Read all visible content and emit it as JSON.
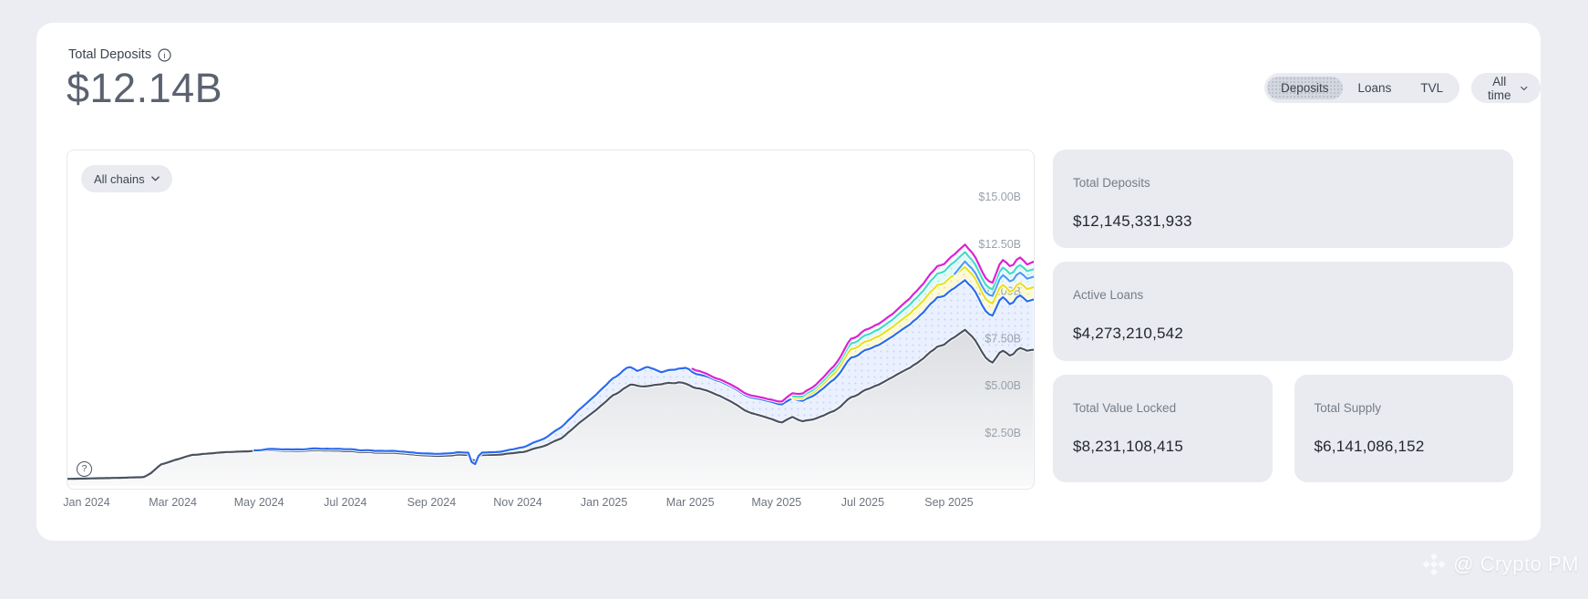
{
  "page": {
    "background_color": "#ecedf2",
    "card_color": "#ffffff"
  },
  "header": {
    "title": "Total Deposits",
    "value": "$12.14B"
  },
  "controls": {
    "metric_tabs": [
      {
        "label": "Deposits",
        "selected": true
      },
      {
        "label": "Loans",
        "selected": false
      },
      {
        "label": "TVL",
        "selected": false
      }
    ],
    "time_range": {
      "label": "All time"
    }
  },
  "chart": {
    "chain_filter": {
      "label": "All chains"
    },
    "help_label": "?",
    "x_ticks": [
      "Jan 2024",
      "Mar 2024",
      "May 2024",
      "Jul 2024",
      "Sep 2024",
      "Nov 2024",
      "Jan 2025",
      "Mar 2025",
      "May 2025",
      "Jul 2025",
      "Sep 2025"
    ],
    "y_ticks": [
      {
        "value": 15,
        "label": "$15.00B"
      },
      {
        "value": 12.5,
        "label": "$12.50B"
      },
      {
        "value": 10,
        "label": "$10.00B"
      },
      {
        "value": 7.5,
        "label": "$7.50B"
      },
      {
        "value": 5,
        "label": "$5.00B"
      },
      {
        "value": 2.5,
        "label": "$2.50B"
      }
    ],
    "chart_data": {
      "type": "area",
      "title": "Total Deposits over time by chain (no legend shown)",
      "x_unit": "months_since_2024-01",
      "x_range": [
        -0.45,
        21.96
      ],
      "y_unit": "USD billions",
      "ylim": [
        0,
        15
      ],
      "grid": false,
      "legend": false,
      "series": [
        {
          "id": "gray",
          "color": "#4a5260",
          "points": [
            [
              -0.45,
              0.04
            ],
            [
              0,
              0.05
            ],
            [
              0.7,
              0.09
            ],
            [
              1.3,
              0.13
            ],
            [
              1.45,
              0.3
            ],
            [
              1.7,
              0.8
            ],
            [
              2,
              1.02
            ],
            [
              2.4,
              1.3
            ],
            [
              3,
              1.42
            ],
            [
              3.6,
              1.5
            ],
            [
              4.2,
              1.55
            ],
            [
              4.8,
              1.5
            ],
            [
              5.4,
              1.56
            ],
            [
              6,
              1.5
            ],
            [
              6.6,
              1.44
            ],
            [
              7.2,
              1.4
            ],
            [
              7.7,
              1.3
            ],
            [
              8.2,
              1.25
            ],
            [
              8.6,
              1.33
            ],
            [
              8.85,
              1.3
            ],
            [
              8.95,
              0.9
            ],
            [
              9.1,
              1.3
            ],
            [
              9.6,
              1.33
            ],
            [
              10.1,
              1.45
            ],
            [
              10.6,
              1.8
            ],
            [
              11,
              2.2
            ],
            [
              11.4,
              3
            ],
            [
              11.9,
              3.9
            ],
            [
              12.2,
              4.5
            ],
            [
              12.6,
              5.05
            ],
            [
              13,
              4.95
            ],
            [
              13.4,
              5.1
            ],
            [
              13.75,
              5.15
            ],
            [
              14.1,
              4.9
            ],
            [
              14.5,
              4.6
            ],
            [
              14.9,
              4.15
            ],
            [
              15.2,
              3.7
            ],
            [
              15.5,
              3.45
            ],
            [
              15.8,
              3.25
            ],
            [
              16.1,
              3
            ],
            [
              16.35,
              3.3
            ],
            [
              16.6,
              3.1
            ],
            [
              16.9,
              3.25
            ],
            [
              17.3,
              3.6
            ],
            [
              17.7,
              4.35
            ],
            [
              18.2,
              4.9
            ],
            [
              18.7,
              5.45
            ],
            [
              19.2,
              6.1
            ],
            [
              19.7,
              7
            ],
            [
              20,
              7.4
            ],
            [
              20.35,
              8
            ],
            [
              20.55,
              7.55
            ],
            [
              20.8,
              6.5
            ],
            [
              21,
              6.2
            ],
            [
              21.2,
              6.85
            ],
            [
              21.4,
              6.5
            ],
            [
              21.6,
              6.95
            ],
            [
              21.8,
              6.8
            ],
            [
              21.96,
              6.85
            ]
          ]
        },
        {
          "id": "blue",
          "color": "#2a6cf0",
          "points": [
            [
              3.8,
              1.52
            ],
            [
              4.2,
              1.62
            ],
            [
              4.8,
              1.58
            ],
            [
              5.4,
              1.65
            ],
            [
              6,
              1.6
            ],
            [
              6.6,
              1.53
            ],
            [
              7.2,
              1.5
            ],
            [
              7.7,
              1.4
            ],
            [
              8.2,
              1.36
            ],
            [
              8.6,
              1.45
            ],
            [
              8.85,
              1.42
            ],
            [
              8.95,
              0.6
            ],
            [
              9.1,
              1.42
            ],
            [
              9.6,
              1.48
            ],
            [
              10.1,
              1.7
            ],
            [
              10.6,
              2.2
            ],
            [
              11,
              2.8
            ],
            [
              11.4,
              3.7
            ],
            [
              11.9,
              4.75
            ],
            [
              12.2,
              5.4
            ],
            [
              12.55,
              6
            ],
            [
              12.75,
              5.8
            ],
            [
              12.95,
              6
            ],
            [
              13.3,
              5.7
            ],
            [
              13.6,
              5.85
            ],
            [
              13.9,
              5.9
            ],
            [
              14.15,
              5.6
            ],
            [
              14.5,
              5.35
            ],
            [
              14.9,
              4.95
            ],
            [
              15.2,
              4.5
            ],
            [
              15.5,
              4.3
            ],
            [
              15.8,
              4.15
            ],
            [
              16.1,
              3.95
            ],
            [
              16.35,
              4.28
            ],
            [
              16.6,
              4.2
            ],
            [
              16.9,
              4.55
            ],
            [
              17.3,
              5.25
            ],
            [
              17.7,
              6.45
            ],
            [
              18.2,
              7
            ],
            [
              18.7,
              7.6
            ],
            [
              19.2,
              8.45
            ],
            [
              19.7,
              9.6
            ],
            [
              20,
              10
            ],
            [
              20.35,
              10.65
            ],
            [
              20.55,
              10.15
            ],
            [
              20.8,
              8.95
            ],
            [
              21,
              8.7
            ],
            [
              21.2,
              9.7
            ],
            [
              21.4,
              9.2
            ],
            [
              21.6,
              9.75
            ],
            [
              21.8,
              9.4
            ],
            [
              21.96,
              9.5
            ]
          ]
        },
        {
          "id": "yellow",
          "color": "#e9e027",
          "points": [
            [
              16.3,
              4.3
            ],
            [
              16.6,
              4.35
            ],
            [
              16.9,
              4.75
            ],
            [
              17.3,
              5.55
            ],
            [
              17.7,
              6.9
            ],
            [
              18.2,
              7.45
            ],
            [
              18.7,
              8.1
            ],
            [
              19.2,
              9.05
            ],
            [
              19.7,
              10.25
            ],
            [
              20,
              10.7
            ],
            [
              20.35,
              11.35
            ],
            [
              20.55,
              10.85
            ],
            [
              20.8,
              9.6
            ],
            [
              21,
              9.35
            ],
            [
              21.2,
              10.35
            ],
            [
              21.4,
              9.85
            ],
            [
              21.6,
              10.4
            ],
            [
              21.8,
              10.05
            ],
            [
              21.96,
              10.15
            ]
          ]
        },
        {
          "id": "lightblue",
          "color": "#4e9cf5",
          "points": [
            [
              20.05,
              10.78
            ],
            [
              20.35,
              11.65
            ],
            [
              20.55,
              11.15
            ],
            [
              20.8,
              9.95
            ],
            [
              21,
              9.75
            ],
            [
              21.2,
              10.85
            ],
            [
              21.4,
              10.4
            ],
            [
              21.6,
              10.95
            ],
            [
              21.8,
              10.6
            ],
            [
              21.96,
              10.7
            ]
          ]
        },
        {
          "id": "teal",
          "color": "#45dcc6",
          "points": [
            [
              16.35,
              4.4
            ],
            [
              16.6,
              4.45
            ],
            [
              16.9,
              4.9
            ],
            [
              17.3,
              5.75
            ],
            [
              17.7,
              7.2
            ],
            [
              18.2,
              7.8
            ],
            [
              18.7,
              8.5
            ],
            [
              19.2,
              9.55
            ],
            [
              19.7,
              10.85
            ],
            [
              20,
              11.35
            ],
            [
              20.35,
              12.15
            ],
            [
              20.55,
              11.6
            ],
            [
              20.8,
              10.35
            ],
            [
              21,
              10.1
            ],
            [
              21.2,
              11.25
            ],
            [
              21.4,
              10.8
            ],
            [
              21.6,
              11.35
            ],
            [
              21.8,
              11
            ],
            [
              21.96,
              11.1
            ]
          ]
        },
        {
          "id": "magenta",
          "color": "#da22d4",
          "points": [
            [
              14,
              5.95
            ],
            [
              14.5,
              5.45
            ],
            [
              14.9,
              5.05
            ],
            [
              15.2,
              4.6
            ],
            [
              15.5,
              4.4
            ],
            [
              15.8,
              4.25
            ],
            [
              16.1,
              4.1
            ],
            [
              16.35,
              4.55
            ],
            [
              16.6,
              4.6
            ],
            [
              16.9,
              5.05
            ],
            [
              17.3,
              5.95
            ],
            [
              17.7,
              7.45
            ],
            [
              18.2,
              8.1
            ],
            [
              18.7,
              8.8
            ],
            [
              19.2,
              9.9
            ],
            [
              19.7,
              11.25
            ],
            [
              20,
              11.75
            ],
            [
              20.35,
              12.55
            ],
            [
              20.55,
              12
            ],
            [
              20.8,
              10.7
            ],
            [
              21,
              10.45
            ],
            [
              21.2,
              11.65
            ],
            [
              21.4,
              11.2
            ],
            [
              21.6,
              11.75
            ],
            [
              21.8,
              11.35
            ],
            [
              21.96,
              11.5
            ]
          ]
        }
      ]
    }
  },
  "stats_cards": [
    {
      "label": "Total Deposits",
      "value": "$12,145,331,933",
      "wide": true
    },
    {
      "label": "Active Loans",
      "value": "$4,273,210,542",
      "wide": true
    },
    {
      "label": "Total Value Locked",
      "value": "$8,231,108,415",
      "wide": false
    },
    {
      "label": "Total Supply",
      "value": "$6,141,086,152",
      "wide": false
    }
  ],
  "watermark": {
    "text": "@ Crypto PM"
  }
}
